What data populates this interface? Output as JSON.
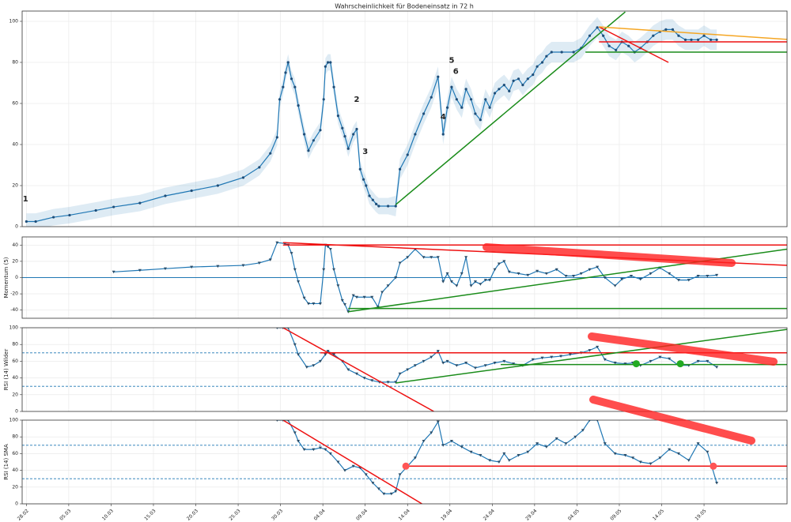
{
  "chart_data": [
    {
      "type": "line",
      "title": "Wahrscheinlichkeit für Bodeneinsatz in 72 h",
      "x": [
        0,
        1.1,
        3.2,
        5.1,
        8.2,
        10.3,
        13.4,
        16.4,
        19.5,
        22.6,
        25.6,
        27.5,
        28.8,
        29.6,
        29.9,
        30.3,
        30.6,
        30.9,
        31.3,
        31.7,
        32.1,
        32.8,
        33.3,
        33.9,
        34.7,
        35.1,
        35.3,
        35.6,
        35.9,
        36.3,
        36.8,
        37.3,
        37.6,
        38,
        38.6,
        39,
        39.4,
        39.8,
        40.1,
        40.5,
        40.9,
        41.3,
        41.6,
        42.7,
        43.6,
        44.1,
        45,
        45.9,
        46.9,
        47.8,
        48.6,
        49.2,
        49.7,
        50.2,
        50.8,
        51.4,
        51.9,
        52.5,
        53,
        53.6,
        54.2,
        54.7,
        55.3,
        55.8,
        56.4,
        57,
        57.5,
        58.1,
        58.6,
        59.2,
        59.8,
        60.3,
        60.9,
        61.4,
        62,
        63.2,
        64.6,
        65.5,
        66.5,
        67.4,
        68.1,
        68.8,
        69.6,
        70.3,
        71.1,
        71.8,
        72.5,
        73.3,
        74,
        74.8,
        75.5,
        76.3,
        77,
        77.8,
        78.5,
        79.3,
        80,
        80.8,
        81.5
      ],
      "series": [
        {
          "color": "#1f77b4",
          "values": [
            2.5,
            2.5,
            4.6,
            5.6,
            7.9,
            9.6,
            11.5,
            15,
            17.5,
            20,
            23.9,
            28.9,
            35.7,
            43.5,
            62,
            68,
            75,
            80,
            72,
            68,
            59,
            45,
            37,
            42,
            47,
            62,
            78,
            80,
            80,
            68,
            54,
            48,
            44,
            38,
            45,
            47.5,
            28,
            23,
            20,
            15,
            13,
            11,
            10,
            10,
            10,
            28,
            35,
            45,
            55,
            63,
            73,
            45,
            58,
            68,
            62,
            58,
            67,
            62,
            55,
            52,
            62,
            58,
            65,
            67,
            69,
            66,
            71,
            72,
            69,
            72,
            74,
            78,
            80,
            83,
            85,
            85,
            85,
            87,
            93,
            97,
            93,
            88,
            86,
            90,
            88,
            85,
            87,
            90,
            93,
            95,
            96,
            96,
            93,
            91,
            91,
            91,
            93,
            91,
            91
          ]
        }
      ],
      "band": {
        "color": "#1f77b4",
        "lower": [
          -1.5,
          -1.5,
          0.6,
          1.6,
          3.9,
          5.6,
          7.5,
          11,
          13.5,
          16,
          19.9,
          24.9,
          31.7,
          39.5,
          58,
          64,
          71,
          76,
          68,
          64,
          55,
          41,
          33,
          38,
          43,
          58,
          74,
          76,
          76,
          64,
          50,
          44,
          40,
          34,
          41,
          43.5,
          24,
          19,
          16,
          11,
          9,
          7,
          6,
          6,
          5,
          23,
          30,
          40,
          50,
          58,
          68,
          40,
          53,
          63,
          57,
          53,
          62,
          57,
          50,
          47,
          57,
          53,
          60,
          62,
          64,
          61,
          66,
          67,
          64,
          67,
          69,
          73,
          75,
          78,
          80,
          80,
          80,
          82,
          88,
          92,
          88,
          83,
          81,
          85,
          83,
          80,
          82,
          85,
          88,
          90,
          91,
          91,
          88,
          86,
          86,
          86,
          88,
          86,
          86
        ],
        "upper": [
          6.5,
          6.5,
          8.6,
          9.6,
          11.9,
          13.6,
          15.5,
          19,
          21.5,
          24,
          27.9,
          32.9,
          39.7,
          47.5,
          66,
          72,
          79,
          84,
          76,
          72,
          63,
          49,
          41,
          46,
          51,
          66,
          82,
          84,
          84,
          72,
          58,
          52,
          48,
          42,
          49,
          51.5,
          32,
          27,
          24,
          19,
          17,
          15,
          14,
          14,
          15,
          33,
          40,
          50,
          60,
          68,
          78,
          50,
          63,
          73,
          67,
          63,
          72,
          67,
          60,
          57,
          67,
          63,
          70,
          72,
          74,
          71,
          76,
          77,
          74,
          77,
          79,
          83,
          85,
          88,
          90,
          90,
          90,
          92,
          98,
          102,
          98,
          93,
          91,
          95,
          93,
          90,
          92,
          95,
          98,
          100,
          101,
          101,
          98,
          96,
          96,
          96,
          98,
          96,
          96
        ]
      },
      "ylim": [
        0,
        105
      ],
      "yticks": [
        0,
        20,
        40,
        60,
        80,
        100
      ],
      "grid": true,
      "lines": [
        {
          "color": "#1a8c1a",
          "x": [
            43.6,
            70.7
          ],
          "y": [
            10.7,
            104.6
          ]
        },
        {
          "color": "#ee1111",
          "x": [
            67.6,
            75.8
          ],
          "y": [
            97.3,
            80
          ]
        },
        {
          "color": "#ee1111",
          "x": [
            67.6,
            89.8
          ],
          "y": [
            90,
            90
          ]
        },
        {
          "color": "#f5a623",
          "x": [
            67.6,
            89.8
          ],
          "y": [
            97.3,
            91.2
          ]
        },
        {
          "color": "#1a8c1a",
          "x": [
            66.0,
            89.8
          ],
          "y": [
            85,
            85
          ]
        }
      ],
      "annotations": [
        {
          "text": "1",
          "x": -0.1,
          "y": 13.5,
          "color": "#ee1111"
        },
        {
          "text": "2",
          "x": 39,
          "y": 62,
          "color": "#ee1111"
        },
        {
          "text": "3",
          "x": 40,
          "y": 36.5,
          "color": "#ee1111"
        },
        {
          "text": "4",
          "x": 49.2,
          "y": 53.5,
          "color": "#ee1111"
        },
        {
          "text": "5",
          "x": 50.2,
          "y": 81,
          "color": "#ee1111"
        },
        {
          "text": "6",
          "x": 50.7,
          "y": 75.5,
          "color": "#ee1111"
        }
      ]
    },
    {
      "type": "line",
      "ylabel": "Momentum (5)",
      "x": [
        10.3,
        13.4,
        16.4,
        19.5,
        22.6,
        25.6,
        27.5,
        28.8,
        29.6,
        30.5,
        30.9,
        31.3,
        31.7,
        32.1,
        32.8,
        33.3,
        33.9,
        34.7,
        35.1,
        35.3,
        35.6,
        35.9,
        36.3,
        36.8,
        37.3,
        37.6,
        38,
        38.6,
        39,
        39.9,
        40.8,
        41.5,
        42,
        42.7,
        43.6,
        44.1,
        45,
        45.9,
        46.9,
        47.8,
        48.6,
        49.2,
        49.7,
        50.2,
        50.8,
        51.4,
        51.9,
        52.5,
        53,
        53.6,
        54.2,
        54.7,
        55.3,
        55.8,
        56.4,
        57,
        58.1,
        59.2,
        60.3,
        61.4,
        62.6,
        63.7,
        64.6,
        65.5,
        66.5,
        67.4,
        68.3,
        69.5,
        70.3,
        71.4,
        72.5,
        73.7,
        74.8,
        75.9,
        77,
        78.2,
        79.3,
        80.4,
        81.5
      ],
      "series": [
        {
          "color": "#1f77b4",
          "values": [
            7,
            9,
            11,
            13,
            14,
            15,
            18,
            22,
            43,
            42,
            40,
            30,
            10,
            -5,
            -25,
            -32,
            -32,
            -32,
            10,
            40,
            38,
            35,
            10,
            -10,
            -28,
            -33,
            -42,
            -22,
            -24,
            -24,
            -24,
            -36,
            -18,
            -10,
            0,
            18,
            25,
            35,
            25,
            25,
            25,
            -5,
            5,
            -5,
            -10,
            5,
            25,
            -10,
            -5,
            -8,
            -3,
            -3,
            10,
            17,
            20,
            7,
            5,
            3,
            8,
            5,
            10,
            2,
            2,
            5,
            10,
            13,
            0,
            -10,
            -2,
            2,
            -2,
            5,
            12,
            5,
            -3,
            -3,
            2,
            2,
            3
          ]
        }
      ],
      "ylim": [
        -50,
        50
      ],
      "yticks": [
        -40,
        -20,
        0,
        20,
        40
      ],
      "grid": true,
      "hlines": [
        {
          "y": 0,
          "color": "#1f77b4",
          "style": "solid"
        }
      ],
      "lines": [
        {
          "color": "#ee1111",
          "x": [
            30.3,
            89.8
          ],
          "y": [
            43,
            15
          ]
        },
        {
          "color": "#ee1111",
          "x": [
            30.3,
            89.8
          ],
          "y": [
            40,
            40
          ]
        },
        {
          "color": "#1a8c1a",
          "x": [
            38,
            89.8
          ],
          "y": [
            -42,
            35
          ]
        },
        {
          "color": "#1a8c1a",
          "x": [
            38,
            89.8
          ],
          "y": [
            -38,
            -38
          ]
        }
      ]
    },
    {
      "type": "line",
      "ylabel": "RSI (14) Wilder",
      "x": [
        29.6,
        30.3,
        30.9,
        31.7,
        32.1,
        33.1,
        33.9,
        34.7,
        35.3,
        35.6,
        36.3,
        37.3,
        38,
        39,
        39.9,
        40.8,
        41.7,
        42.7,
        43.6,
        44.1,
        45,
        45.9,
        46.9,
        47.8,
        48.6,
        49.2,
        49.7,
        50.8,
        51.9,
        53,
        54.2,
        55.3,
        56.4,
        57.5,
        58.6,
        59.8,
        60.9,
        62,
        63.1,
        64.2,
        65.5,
        66.5,
        67.4,
        68.3,
        69.5,
        70.7,
        71.6,
        72.5,
        73.7,
        74.8,
        75.9,
        77,
        78.2,
        79.3,
        80.4,
        81.5
      ],
      "series": [
        {
          "color": "#1f77b4",
          "values": [
            100,
            100,
            100,
            80,
            68,
            53,
            55,
            60,
            68,
            72,
            68,
            60,
            50,
            45,
            40,
            37,
            35,
            35,
            35,
            45,
            50,
            55,
            60,
            65,
            72,
            58,
            60,
            55,
            58,
            52,
            55,
            58,
            60,
            57,
            55,
            62,
            64,
            65,
            66,
            68,
            70,
            73,
            77,
            62,
            58,
            57,
            58,
            55,
            60,
            65,
            63,
            55,
            55,
            60,
            60,
            53
          ]
        }
      ],
      "ylim": [
        0,
        100
      ],
      "yticks": [
        0,
        20,
        40,
        60,
        80,
        100
      ],
      "grid": true,
      "hlines": [
        {
          "y": 70,
          "color": "#1f77b4",
          "style": "dashed"
        },
        {
          "y": 30,
          "color": "#1f77b4",
          "style": "dashed"
        }
      ],
      "lines": [
        {
          "color": "#ee1111",
          "x": [
            30.3,
            48.1
          ],
          "y": [
            100,
            0
          ]
        },
        {
          "color": "#ee1111",
          "x": [
            34.7,
            89.8
          ],
          "y": [
            70,
            70
          ]
        },
        {
          "color": "#1a8c1a",
          "x": [
            43.6,
            89.8
          ],
          "y": [
            34,
            98
          ]
        },
        {
          "color": "#1a8c1a",
          "x": [
            56,
            89.8
          ],
          "y": [
            56,
            56
          ]
        }
      ],
      "markers": [
        {
          "color": "#22aa22",
          "x": 72,
          "y": 57
        },
        {
          "color": "#22aa22",
          "x": 77.2,
          "y": 57
        }
      ]
    },
    {
      "type": "line",
      "ylabel": "RSI (14) SMA",
      "x": [
        29.6,
        30.3,
        30.9,
        31.7,
        32.1,
        32.8,
        33.9,
        34.7,
        35.3,
        35.9,
        36.8,
        37.6,
        38.6,
        39.4,
        40.1,
        40.9,
        41.6,
        42.2,
        43.1,
        43.6,
        44.1,
        45,
        45.9,
        46.9,
        47.8,
        48.6,
        49.2,
        50.2,
        51.4,
        52.5,
        53.6,
        54.7,
        55.8,
        56.4,
        57,
        58.1,
        59.2,
        60.3,
        61.4,
        62.6,
        63.7,
        64.8,
        65.7,
        66.5,
        67.4,
        68.3,
        69.5,
        70.7,
        71.6,
        72.5,
        73.7,
        74.8,
        75.9,
        77,
        78.2,
        79.3,
        80.4,
        81.5
      ],
      "series": [
        {
          "color": "#1f77b4",
          "values": [
            100,
            100,
            100,
            85,
            75,
            65,
            65,
            67,
            65,
            60,
            50,
            40,
            45,
            43,
            35,
            25,
            18,
            12,
            12,
            15,
            35,
            45,
            55,
            75,
            85,
            98,
            70,
            75,
            68,
            62,
            58,
            52,
            50,
            60,
            52,
            58,
            62,
            72,
            68,
            78,
            72,
            80,
            88,
            100,
            100,
            72,
            60,
            58,
            55,
            50,
            48,
            55,
            65,
            60,
            52,
            72,
            62,
            25
          ]
        }
      ],
      "ylim": [
        0,
        100
      ],
      "yticks": [
        0,
        20,
        40,
        60,
        80,
        100
      ],
      "grid": true,
      "xlim": [
        -0.5,
        89.8
      ],
      "xticks": [
        {
          "value": 0,
          "label": "28.02"
        },
        {
          "value": 5,
          "label": "05.03"
        },
        {
          "value": 10,
          "label": "10.03"
        },
        {
          "value": 15,
          "label": "15.03"
        },
        {
          "value": 20,
          "label": "20.03"
        },
        {
          "value": 25,
          "label": "25.03"
        },
        {
          "value": 30,
          "label": "30.03"
        },
        {
          "value": 35,
          "label": "04.04"
        },
        {
          "value": 40,
          "label": "09.04"
        },
        {
          "value": 45,
          "label": "14.04"
        },
        {
          "value": 50,
          "label": "19.04"
        },
        {
          "value": 55,
          "label": "24.04"
        },
        {
          "value": 60,
          "label": "29.04"
        },
        {
          "value": 65,
          "label": "04.05"
        },
        {
          "value": 70,
          "label": "09.05"
        },
        {
          "value": 75,
          "label": "14.05"
        },
        {
          "value": 80,
          "label": "19.05"
        }
      ],
      "hlines": [
        {
          "y": 70,
          "color": "#1f77b4",
          "style": "dashed"
        },
        {
          "y": 30,
          "color": "#1f77b4",
          "style": "dashed"
        }
      ],
      "lines": [
        {
          "color": "#ee1111",
          "x": [
            30.3,
            46.7
          ],
          "y": [
            100,
            0
          ]
        },
        {
          "color": "#ee1111",
          "x": [
            44.8,
            89.8
          ],
          "y": [
            45,
            45
          ]
        }
      ],
      "markers": [
        {
          "color": "#ff5555",
          "x": 44.8,
          "y": 45
        },
        {
          "color": "#ff5555",
          "x": 81.1,
          "y": 45
        }
      ]
    }
  ]
}
